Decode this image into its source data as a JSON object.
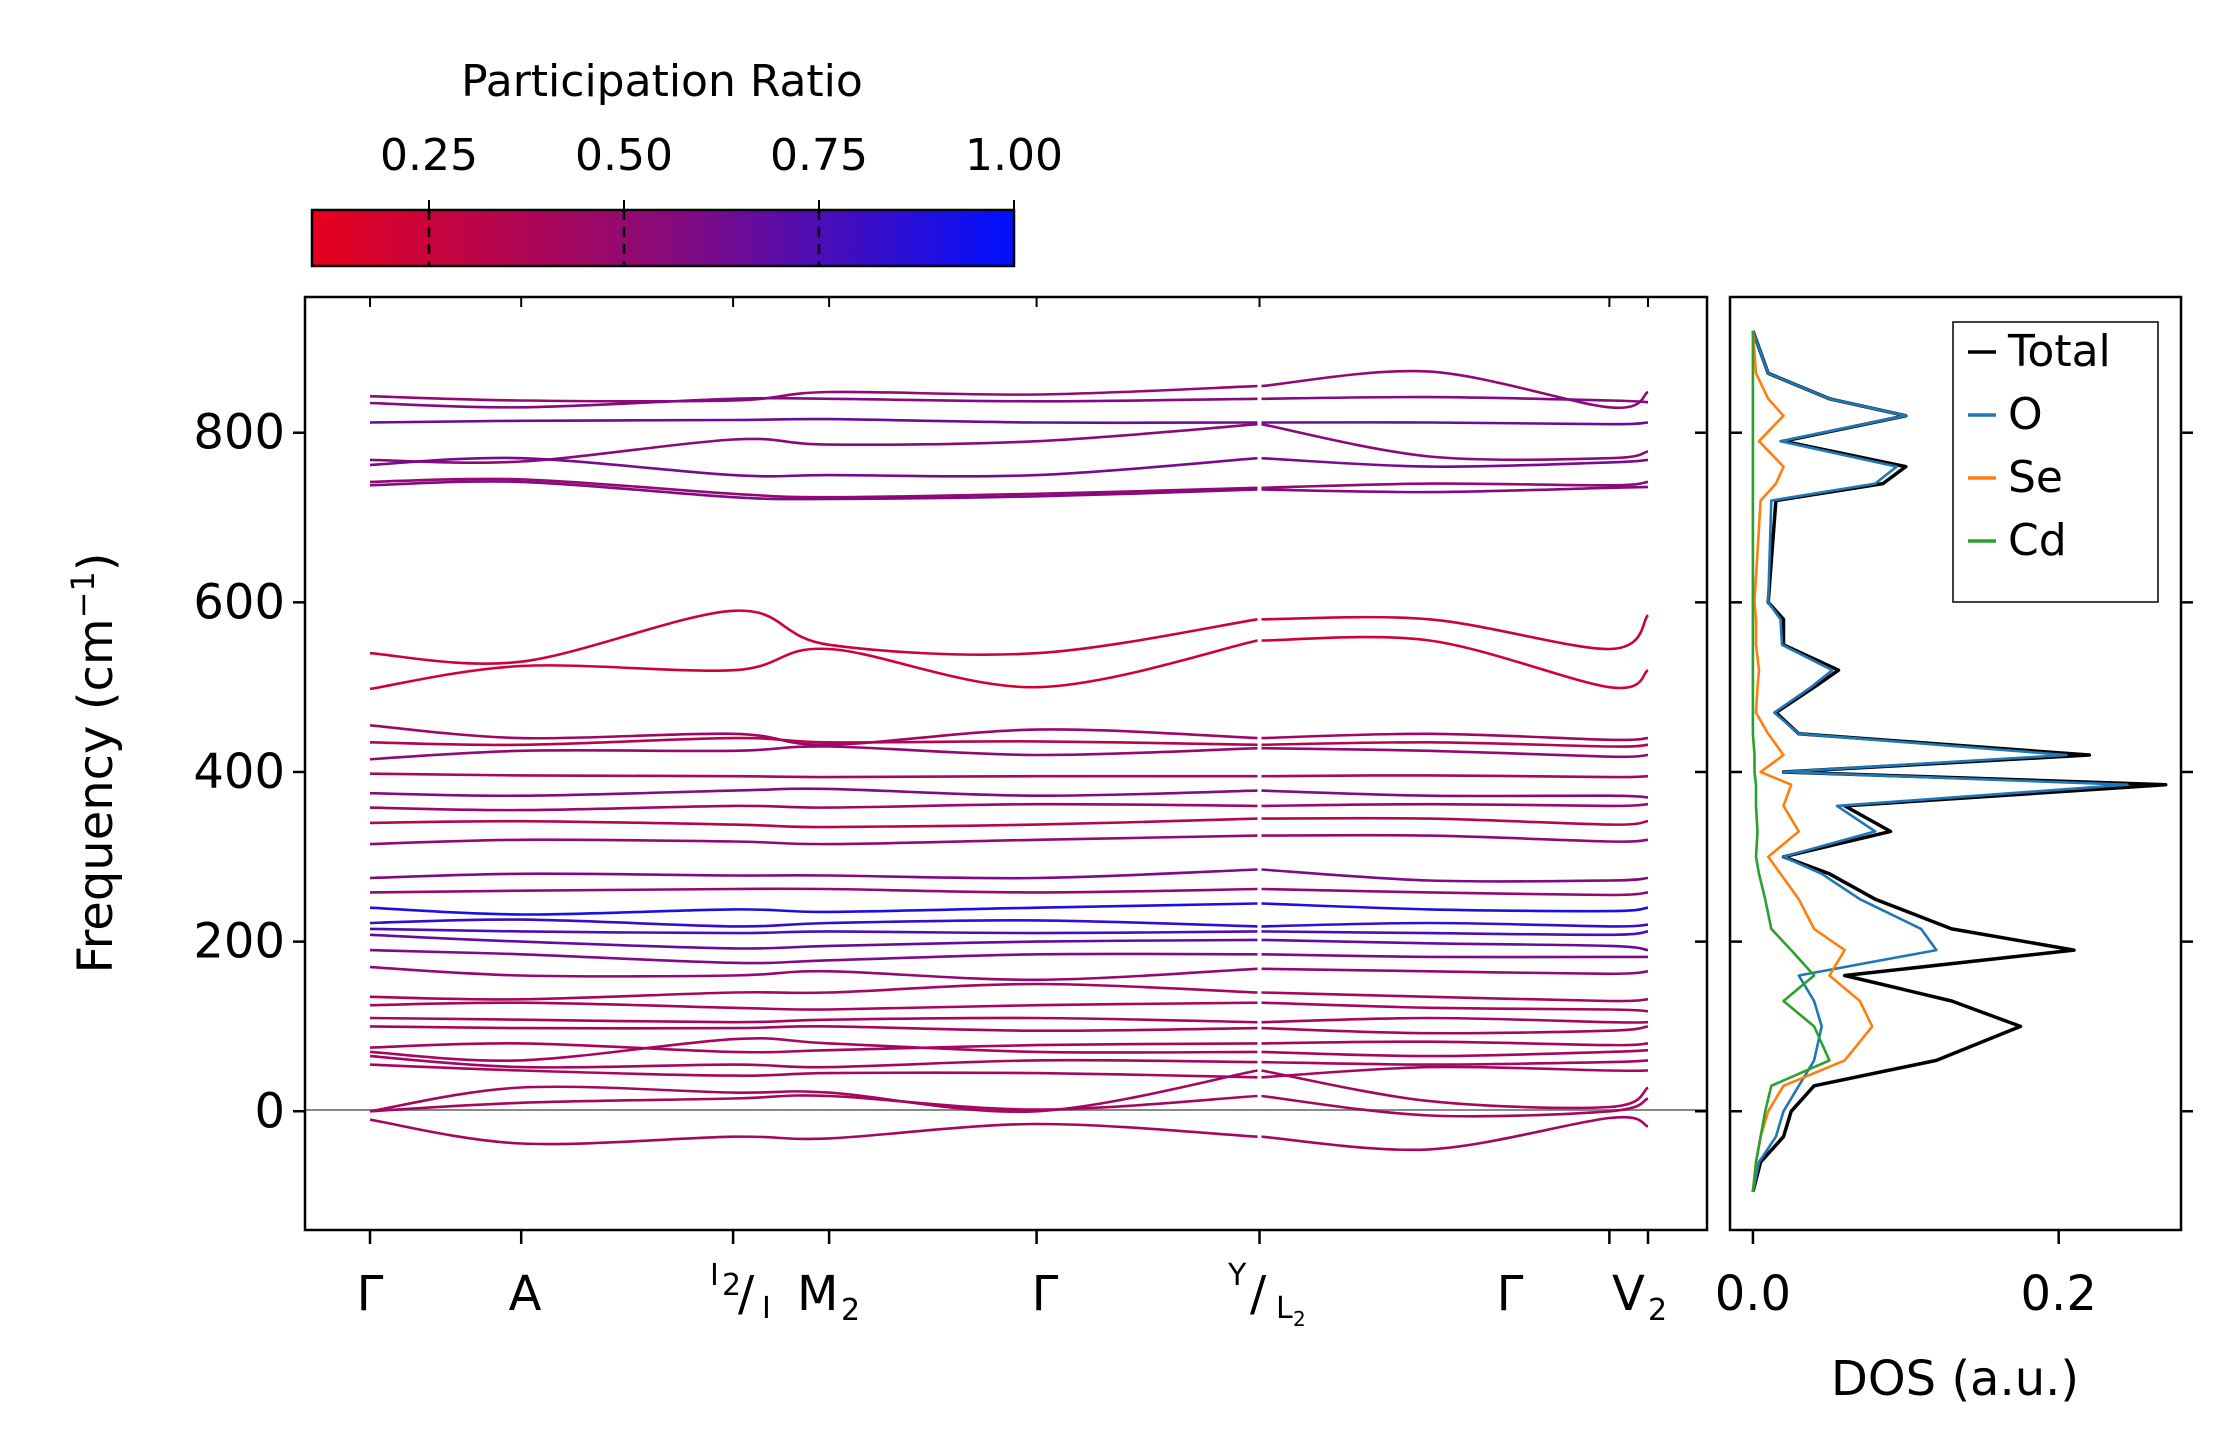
{
  "chart_data": [
    {
      "type": "colorbar",
      "title": "Participation Ratio",
      "ticks": [
        "0.25",
        "0.50",
        "0.75",
        "1.00"
      ],
      "tick_values": [
        0.25,
        0.5,
        0.75,
        1.0
      ],
      "range": [
        0.1,
        1.0
      ],
      "colors": {
        "low": "#e8001c",
        "mid": "#8a0a7a",
        "high": "#0010ff"
      }
    },
    {
      "type": "line",
      "name": "phonon-dispersion",
      "ylabel_base": "Frequency (cm",
      "ylabel_exp": "−1",
      "ylabel_end": ")",
      "ylim": [
        -140,
        960
      ],
      "yticks": [
        "0",
        "200",
        "400",
        "600",
        "800"
      ],
      "ytick_values": [
        0,
        200,
        400,
        600,
        800
      ],
      "kpoints": {
        "gamma1": "Γ",
        "a": "A",
        "i2_main": "I",
        "i2_sub": "2",
        "i_main": "I",
        "m2_main": "M",
        "m2_sub": "2",
        "gamma2": "Γ",
        "y_main": "Y",
        "l2_main": "L",
        "l2_sub": "2",
        "gamma3": "Γ",
        "v2_main": "V",
        "v2_sub": "2"
      },
      "kpoint_positions": [
        0,
        0.137,
        0.329,
        0.416,
        0.604,
        0.806,
        1.123,
        1.158
      ],
      "segments": [
        [
          0,
          0.806
        ],
        [
          0.806,
          1.158
        ]
      ],
      "bands": [
        [
          843,
          838,
          838,
          848,
          845,
          855,
          872,
          830,
          848
        ],
        [
          835,
          830,
          840,
          840,
          837,
          840,
          842,
          838,
          836
        ],
        [
          812,
          814,
          815,
          816,
          812,
          812,
          812,
          810,
          812
        ],
        [
          768,
          766,
          792,
          786,
          790,
          810,
          772,
          770,
          778
        ],
        [
          762,
          770,
          750,
          750,
          750,
          770,
          760,
          765,
          768
        ],
        [
          742,
          745,
          728,
          724,
          728,
          735,
          740,
          738,
          742
        ],
        [
          738,
          742,
          724,
          722,
          725,
          733,
          730,
          735,
          736
        ],
        [
          540,
          530,
          590,
          550,
          540,
          580,
          580,
          545,
          585
        ],
        [
          498,
          525,
          520,
          545,
          500,
          555,
          555,
          500,
          520
        ],
        [
          455,
          440,
          445,
          432,
          450,
          440,
          445,
          438,
          440
        ],
        [
          435,
          432,
          440,
          435,
          436,
          432,
          435,
          430,
          432
        ],
        [
          415,
          425,
          425,
          430,
          420,
          428,
          425,
          418,
          420
        ],
        [
          398,
          396,
          395,
          394,
          395,
          395,
          396,
          394,
          395
        ],
        [
          375,
          372,
          378,
          380,
          372,
          378,
          372,
          372,
          370
        ],
        [
          358,
          355,
          360,
          358,
          362,
          360,
          362,
          360,
          362
        ],
        [
          340,
          342,
          338,
          335,
          338,
          345,
          345,
          338,
          342
        ],
        [
          315,
          320,
          318,
          315,
          320,
          325,
          325,
          318,
          320
        ],
        [
          275,
          280,
          278,
          278,
          275,
          285,
          272,
          272,
          275
        ],
        [
          258,
          260,
          262,
          262,
          258,
          262,
          258,
          255,
          258
        ],
        [
          240,
          232,
          238,
          235,
          240,
          245,
          238,
          236,
          240
        ],
        [
          222,
          226,
          218,
          222,
          225,
          218,
          222,
          218,
          220
        ],
        [
          215,
          212,
          210,
          212,
          210,
          212,
          210,
          208,
          212
        ],
        [
          208,
          200,
          192,
          195,
          200,
          202,
          198,
          195,
          190
        ],
        [
          190,
          185,
          175,
          178,
          185,
          185,
          182,
          182,
          182
        ],
        [
          170,
          160,
          160,
          165,
          155,
          168,
          165,
          162,
          165
        ],
        [
          135,
          132,
          140,
          140,
          150,
          140,
          135,
          130,
          132
        ],
        [
          125,
          128,
          122,
          120,
          125,
          128,
          122,
          120,
          118
        ],
        [
          110,
          108,
          105,
          108,
          110,
          105,
          110,
          105,
          105
        ],
        [
          100,
          98,
          98,
          100,
          95,
          98,
          92,
          95,
          100
        ],
        [
          75,
          80,
          70,
          72,
          78,
          80,
          82,
          78,
          80
        ],
        [
          70,
          60,
          85,
          80,
          70,
          70,
          65,
          70,
          72
        ],
        [
          65,
          52,
          55,
          52,
          60,
          58,
          55,
          58,
          60
        ],
        [
          55,
          48,
          42,
          45,
          45,
          40,
          52,
          48,
          48
        ],
        [
          0,
          28,
          22,
          22,
          0,
          48,
          12,
          5,
          28
        ],
        [
          0,
          10,
          15,
          18,
          2,
          18,
          -5,
          0,
          15
        ],
        [
          -10,
          -38,
          -30,
          -32,
          -15,
          -30,
          -45,
          -8,
          -18
        ]
      ]
    },
    {
      "type": "line",
      "name": "density-of-states",
      "xlabel": "DOS (a.u.)",
      "xticks": [
        "0.0",
        "0.2"
      ],
      "xtick_values": [
        0.0,
        0.2
      ],
      "xlim": [
        -0.015,
        0.28
      ],
      "ylim": [
        -140,
        960
      ],
      "freq": [
        -95,
        -60,
        -30,
        0,
        30,
        60,
        100,
        130,
        160,
        190,
        215,
        250,
        280,
        300,
        330,
        360,
        385,
        400,
        420,
        445,
        470,
        500,
        520,
        550,
        580,
        600,
        720,
        740,
        760,
        790,
        820,
        840,
        870,
        920
      ],
      "series": [
        {
          "name": "Total",
          "color": "#000000",
          "values": [
            0,
            0.005,
            0.02,
            0.025,
            0.04,
            0.12,
            0.175,
            0.13,
            0.06,
            0.21,
            0.13,
            0.08,
            0.05,
            0.02,
            0.09,
            0.06,
            0.27,
            0.02,
            0.22,
            0.03,
            0.015,
            0.04,
            0.056,
            0.02,
            0.02,
            0.01,
            0.015,
            0.085,
            0.1,
            0.02,
            0.1,
            0.05,
            0.01,
            0
          ]
        },
        {
          "name": "O",
          "color": "#1f77b4",
          "values": [
            0,
            0.004,
            0.015,
            0.02,
            0.03,
            0.04,
            0.045,
            0.04,
            0.03,
            0.12,
            0.11,
            0.07,
            0.045,
            0.02,
            0.08,
            0.055,
            0.245,
            0.02,
            0.205,
            0.03,
            0.014,
            0.038,
            0.052,
            0.019,
            0.018,
            0.01,
            0.012,
            0.08,
            0.094,
            0.018,
            0.1,
            0.05,
            0.01,
            0
          ]
        },
        {
          "name": "Se",
          "color": "#ff7f0e",
          "values": [
            0,
            0.002,
            0.005,
            0.01,
            0.02,
            0.06,
            0.078,
            0.07,
            0.05,
            0.06,
            0.04,
            0.03,
            0.018,
            0.01,
            0.03,
            0.02,
            0.025,
            0.005,
            0.02,
            0.01,
            0.002,
            0.003,
            0.004,
            0.002,
            0.002,
            0.001,
            0.005,
            0.015,
            0.02,
            0.004,
            0.02,
            0.01,
            0.002,
            0
          ]
        },
        {
          "name": "Cd",
          "color": "#2ca02c",
          "values": [
            0,
            0.002,
            0.005,
            0.008,
            0.012,
            0.05,
            0.04,
            0.02,
            0.04,
            0.025,
            0.012,
            0.008,
            0.004,
            0.002,
            0.003,
            0.002,
            0.002,
            0.001,
            0.001,
            0,
            0,
            0,
            0,
            0,
            0,
            0,
            0,
            0,
            0,
            0,
            0,
            0,
            0,
            0
          ]
        }
      ],
      "legend_position": "top-right"
    }
  ]
}
